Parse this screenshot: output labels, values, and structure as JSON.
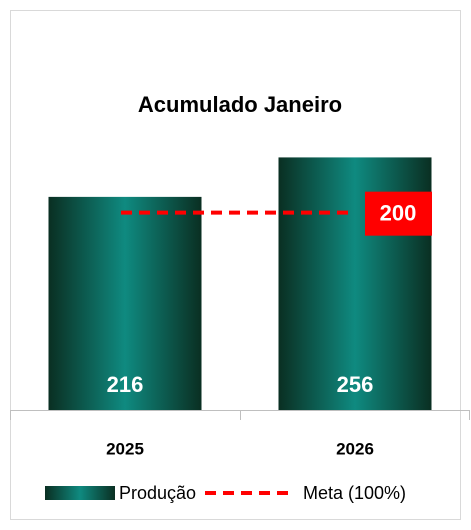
{
  "chart_data": {
    "type": "bar",
    "title": "Acumulado Janeiro",
    "categories": [
      "2025",
      "2026"
    ],
    "series": [
      {
        "name": "Produção",
        "color": "#0f7a70",
        "values": [
          216,
          256
        ]
      }
    ],
    "target": {
      "name": "Meta (100%)",
      "value": 200,
      "color": "#ff0000"
    },
    "ylim": [
      0,
      300
    ]
  }
}
